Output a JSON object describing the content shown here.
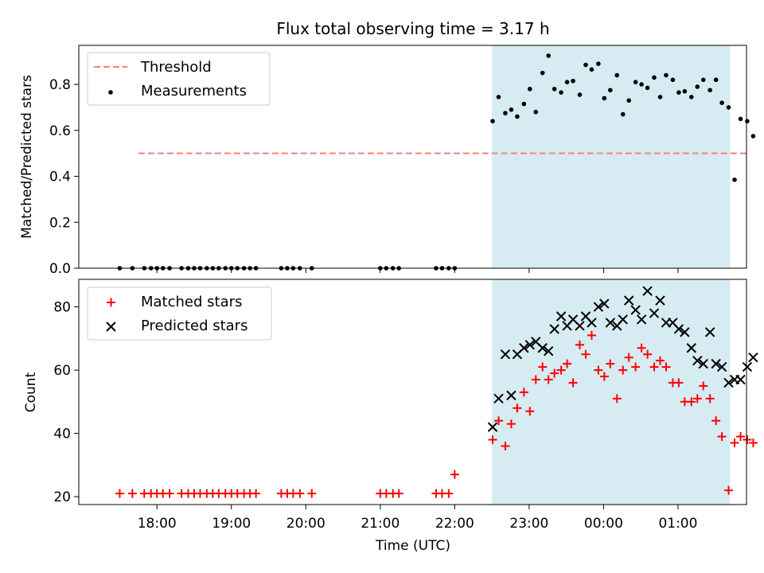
{
  "chart_data": [
    {
      "type": "scatter",
      "title": "Flux total observing time = 3.17 h",
      "ylabel": "Matched/Predicted stars",
      "ylim": [
        0,
        0.97
      ],
      "yticks": [
        "0.0",
        "0.2",
        "0.4",
        "0.6",
        "0.8"
      ],
      "ytick_values": [
        0,
        0.2,
        0.4,
        0.6,
        0.8
      ],
      "xlim": [
        -0.55,
        8.42
      ],
      "shaded_interval": [
        5.0,
        8.2
      ],
      "shade_color": "#add8e6",
      "legend_position": "upper left",
      "threshold": {
        "name": "Threshold",
        "value": 0.5,
        "x_range": [
          0.25,
          8.5
        ],
        "color": "#ff7f7f"
      },
      "series": [
        {
          "name": "Measurements",
          "color": "#000000",
          "marker": "dot",
          "x": [
            0.0,
            0.17,
            0.33,
            0.42,
            0.5,
            0.58,
            0.67,
            0.83,
            0.92,
            1.0,
            1.08,
            1.17,
            1.25,
            1.33,
            1.42,
            1.5,
            1.58,
            1.67,
            1.75,
            1.83,
            2.17,
            2.25,
            2.33,
            2.42,
            2.58,
            3.5,
            3.58,
            3.67,
            3.75,
            4.25,
            4.33,
            4.42,
            4.5,
            5.01,
            5.09,
            5.18,
            5.26,
            5.34,
            5.43,
            5.51,
            5.59,
            5.68,
            5.76,
            5.84,
            5.93,
            6.01,
            6.09,
            6.18,
            6.26,
            6.34,
            6.43,
            6.51,
            6.59,
            6.68,
            6.76,
            6.84,
            6.93,
            7.01,
            7.09,
            7.18,
            7.26,
            7.34,
            7.43,
            7.51,
            7.59,
            7.68,
            7.76,
            7.84,
            7.93,
            8.01,
            8.09,
            8.18,
            8.26,
            8.34,
            8.43,
            8.51
          ],
          "y": [
            0,
            0,
            0,
            0,
            0,
            0,
            0,
            0,
            0,
            0,
            0,
            0,
            0,
            0,
            0,
            0,
            0,
            0,
            0,
            0,
            0,
            0,
            0,
            0,
            0,
            0,
            0,
            0,
            0,
            0,
            0,
            0,
            0,
            0.64,
            0.745,
            0.675,
            0.69,
            0.66,
            0.715,
            0.78,
            0.68,
            0.85,
            0.925,
            0.78,
            0.765,
            0.81,
            0.815,
            0.755,
            0.885,
            0.865,
            0.89,
            0.74,
            0.775,
            0.84,
            0.67,
            0.73,
            0.81,
            0.8,
            0.785,
            0.83,
            0.745,
            0.84,
            0.82,
            0.765,
            0.77,
            0.745,
            0.79,
            0.82,
            0.775,
            0.82,
            0.72,
            0.7,
            0.385,
            0.65,
            0.64,
            0.575
          ]
        }
      ]
    },
    {
      "type": "scatter",
      "xlabel": "Time (UTC)",
      "ylabel": "Count",
      "ylim": [
        17.5,
        88.7
      ],
      "yticks": [
        "20",
        "40",
        "60",
        "80"
      ],
      "ytick_values": [
        20,
        40,
        60,
        80
      ],
      "xlim": [
        -0.55,
        8.42
      ],
      "xticks": [
        "18:00",
        "19:00",
        "20:00",
        "21:00",
        "22:00",
        "23:00",
        "00:00",
        "01:00"
      ],
      "xtick_values": [
        0.5,
        1.5,
        2.5,
        3.5,
        4.5,
        5.5,
        6.5,
        7.5
      ],
      "shaded_interval": [
        5.0,
        8.2
      ],
      "shade_color": "#add8e6",
      "legend_position": "upper left",
      "series": [
        {
          "name": "Matched stars",
          "color": "#ff0000",
          "marker": "plus",
          "x": [
            0.0,
            0.17,
            0.33,
            0.42,
            0.5,
            0.58,
            0.67,
            0.83,
            0.92,
            1.0,
            1.08,
            1.17,
            1.25,
            1.33,
            1.42,
            1.5,
            1.58,
            1.67,
            1.75,
            1.83,
            2.17,
            2.25,
            2.33,
            2.42,
            2.58,
            3.5,
            3.58,
            3.67,
            3.75,
            4.25,
            4.33,
            4.42,
            4.5,
            5.01,
            5.09,
            5.18,
            5.26,
            5.34,
            5.43,
            5.51,
            5.59,
            5.68,
            5.76,
            5.84,
            5.93,
            6.01,
            6.09,
            6.18,
            6.26,
            6.34,
            6.43,
            6.51,
            6.59,
            6.68,
            6.76,
            6.84,
            6.93,
            7.01,
            7.09,
            7.18,
            7.26,
            7.34,
            7.43,
            7.51,
            7.59,
            7.68,
            7.76,
            7.84,
            7.93,
            8.01,
            8.09,
            8.18,
            8.26,
            8.34,
            8.43,
            8.51
          ],
          "y": [
            21,
            21,
            21,
            21,
            21,
            21,
            21,
            21,
            21,
            21,
            21,
            21,
            21,
            21,
            21,
            21,
            21,
            21,
            21,
            21,
            21,
            21,
            21,
            21,
            21,
            21,
            21,
            21,
            21,
            21,
            21,
            21,
            27,
            38,
            44,
            36,
            43,
            48,
            53,
            47,
            57,
            61,
            57,
            59,
            60,
            62,
            56,
            68,
            65,
            71,
            60,
            58,
            62,
            51,
            60,
            64,
            61,
            67,
            65,
            61,
            63,
            61,
            56,
            56,
            50,
            50,
            51,
            55,
            51,
            44,
            39,
            22,
            37,
            39,
            38,
            37
          ]
        },
        {
          "name": "Predicted stars",
          "color": "#000000",
          "marker": "x",
          "x": [
            5.01,
            5.09,
            5.18,
            5.26,
            5.34,
            5.43,
            5.51,
            5.59,
            5.68,
            5.76,
            5.84,
            5.93,
            6.01,
            6.09,
            6.18,
            6.26,
            6.34,
            6.43,
            6.51,
            6.59,
            6.68,
            6.76,
            6.84,
            6.93,
            7.01,
            7.09,
            7.18,
            7.26,
            7.34,
            7.43,
            7.51,
            7.59,
            7.68,
            7.76,
            7.84,
            7.93,
            8.01,
            8.09,
            8.18,
            8.26,
            8.34,
            8.43,
            8.51
          ],
          "y": [
            42,
            51,
            65,
            52,
            65,
            67,
            68,
            69,
            67,
            66,
            73,
            77,
            74,
            76,
            74,
            77,
            75,
            80,
            81,
            75,
            74,
            76,
            82,
            79,
            76,
            85,
            78,
            82,
            75,
            75,
            73,
            72,
            67,
            63,
            62,
            72,
            62,
            61,
            56,
            57,
            57,
            61,
            64
          ]
        }
      ]
    }
  ]
}
